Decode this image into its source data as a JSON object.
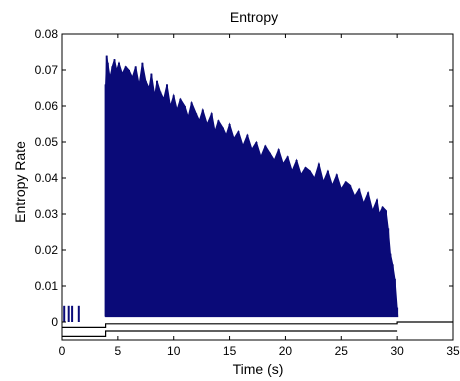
{
  "chart_data": {
    "type": "bar",
    "title": "Entropy",
    "xlabel": "Time (s)",
    "ylabel": "Entropy Rate",
    "xlim": [
      0,
      35
    ],
    "ylim": [
      -0.005,
      0.08
    ],
    "x_ticks": [
      "0",
      "5",
      "10",
      "15",
      "20",
      "25",
      "30",
      "35"
    ],
    "y_ticks": [
      "0",
      "0.01",
      "0.02",
      "0.03",
      "0.04",
      "0.05",
      "0.06",
      "0.07",
      "0.08"
    ],
    "grid": false,
    "legend": "none",
    "bar_color": "#0a0a78",
    "series": [
      {
        "style": "dense spikes",
        "x": [
          0.2,
          0.6,
          0.9,
          1.5,
          3.9,
          4.0,
          4.1,
          4.3,
          4.5,
          4.7,
          4.9,
          5.1,
          5.4,
          5.7,
          6.0,
          6.3,
          6.6,
          6.9,
          7.2,
          7.5,
          7.8,
          8.0,
          8.3,
          8.5,
          8.8,
          9.1,
          9.4,
          9.7,
          10.0,
          10.3,
          10.6,
          11.0,
          11.3,
          11.6,
          12.0,
          12.3,
          12.6,
          13.0,
          13.4,
          13.7,
          14.0,
          14.4,
          14.7,
          15.0,
          15.4,
          15.8,
          16.2,
          16.6,
          17.0,
          17.4,
          17.8,
          18.2,
          18.6,
          19.0,
          19.4,
          19.8,
          20.2,
          20.6,
          21.0,
          21.4,
          21.8,
          22.2,
          22.6,
          23.0,
          23.4,
          23.8,
          24.2,
          24.6,
          25.0,
          25.4,
          25.8,
          26.2,
          26.6,
          27.0,
          27.4,
          27.8,
          28.2,
          28.4,
          28.7,
          29.0,
          29.2,
          29.4,
          29.6,
          29.8,
          30.0
        ],
        "y": [
          0.0045,
          0.0045,
          0.0045,
          0.0045,
          0.066,
          0.074,
          0.072,
          0.068,
          0.071,
          0.073,
          0.07,
          0.072,
          0.069,
          0.071,
          0.07,
          0.068,
          0.071,
          0.066,
          0.072,
          0.067,
          0.065,
          0.069,
          0.063,
          0.067,
          0.064,
          0.062,
          0.066,
          0.06,
          0.063,
          0.059,
          0.062,
          0.06,
          0.057,
          0.061,
          0.058,
          0.056,
          0.059,
          0.055,
          0.058,
          0.053,
          0.056,
          0.054,
          0.052,
          0.055,
          0.051,
          0.053,
          0.049,
          0.052,
          0.048,
          0.05,
          0.046,
          0.049,
          0.047,
          0.045,
          0.048,
          0.044,
          0.046,
          0.042,
          0.045,
          0.041,
          0.043,
          0.042,
          0.04,
          0.044,
          0.039,
          0.042,
          0.038,
          0.041,
          0.037,
          0.039,
          0.038,
          0.035,
          0.037,
          0.033,
          0.036,
          0.031,
          0.034,
          0.03,
          0.032,
          0.031,
          0.026,
          0.019,
          0.016,
          0.012,
          0.004
        ],
        "base": [
          0,
          0,
          0,
          0,
          0.0015,
          0.0015,
          0.0015,
          0.0015,
          0.0015,
          0.0015,
          0.0015,
          0.0015,
          0.0015,
          0.0015,
          0.0015,
          0.0015,
          0.0015,
          0.0015,
          0.0015,
          0.0015,
          0.0015,
          0.0015,
          0.0015,
          0.0015,
          0.0015,
          0.0015,
          0.0015,
          0.0015,
          0.0015,
          0.0015,
          0.0015,
          0.0015,
          0.0015,
          0.0015,
          0.0015,
          0.0015,
          0.0015,
          0.0015,
          0.0015,
          0.0015,
          0.0015,
          0.0015,
          0.0015,
          0.0015,
          0.0015,
          0.0015,
          0.0015,
          0.0015,
          0.0015,
          0.0015,
          0.0015,
          0.0015,
          0.0015,
          0.0015,
          0.0015,
          0.0015,
          0.0015,
          0.0015,
          0.0015,
          0.0015,
          0.0015,
          0.0015,
          0.0015,
          0.0015,
          0.0015,
          0.0015,
          0.0015,
          0.0015,
          0.0015,
          0.0015,
          0.0015,
          0.0015,
          0.0015,
          0.0015,
          0.0015,
          0.0015,
          0.0015,
          0.0015,
          0.0015,
          0.0015,
          0.0015,
          0.0015,
          0.0015,
          0.0015,
          0.0015
        ]
      },
      {
        "style": "step line",
        "x": [
          0,
          3.9,
          3.9,
          30,
          30,
          35
        ],
        "y": [
          -0.0015,
          -0.0015,
          -0.0005,
          -0.0005,
          0,
          0
        ]
      },
      {
        "style": "step line",
        "x": [
          0,
          3.9,
          3.9,
          30
        ],
        "y": [
          -0.004,
          -0.004,
          -0.0025,
          -0.0025
        ]
      }
    ]
  }
}
